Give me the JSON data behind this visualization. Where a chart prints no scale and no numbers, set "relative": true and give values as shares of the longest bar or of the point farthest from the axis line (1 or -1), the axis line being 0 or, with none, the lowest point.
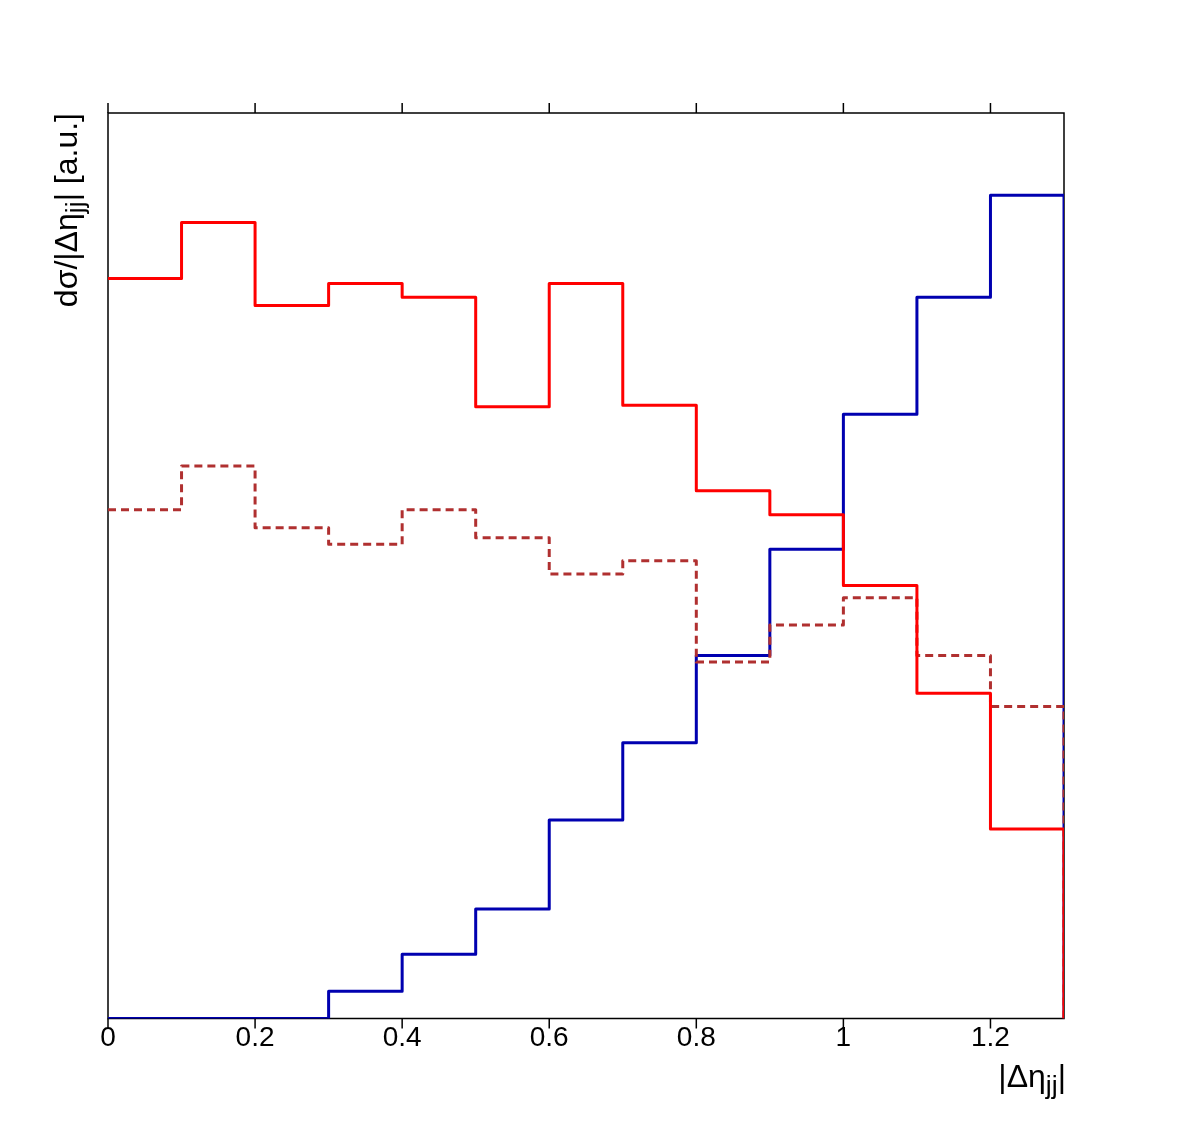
{
  "chart_data": {
    "type": "step",
    "xlabel": "|Δη$_{jj}$|",
    "ylabel": "dσ/|Δη$_{jj}$| [a.u.]",
    "relative": true,
    "x": [
      0,
      0.1,
      0.2,
      0.3,
      0.4,
      0.5,
      0.6,
      0.7,
      0.8,
      0.9,
      1,
      1.1,
      1.2,
      1.3,
      1.3
    ],
    "xlim": [
      0,
      1.3
    ],
    "xticks": [
      0,
      0.2,
      0.4,
      0.6,
      0.8,
      1,
      1.2
    ],
    "grid": false,
    "legend": false,
    "series": [
      {
        "color": "#ff0000",
        "line_style": "solid",
        "values": [
          0.899,
          0.967,
          0.866,
          0.893,
          0.876,
          0.743,
          0.893,
          0.745,
          0.641,
          0.612,
          0.526,
          0.395,
          0.23,
          0.23,
          0
        ]
      },
      {
        "color": "#b03030",
        "line_style": "dashed",
        "values": [
          0.618,
          0.671,
          0.596,
          0.576,
          0.618,
          0.584,
          0.54,
          0.556,
          0.433,
          0.478,
          0.511,
          0.441,
          0.379,
          0.379,
          0
        ]
      },
      {
        "color": "#0000b0",
        "line_style": "solid",
        "values": [
          0,
          0,
          0,
          0.033,
          0.078,
          0.133,
          0.241,
          0.335,
          0.441,
          0.57,
          0.734,
          0.876,
          1,
          1,
          0
        ]
      }
    ]
  }
}
